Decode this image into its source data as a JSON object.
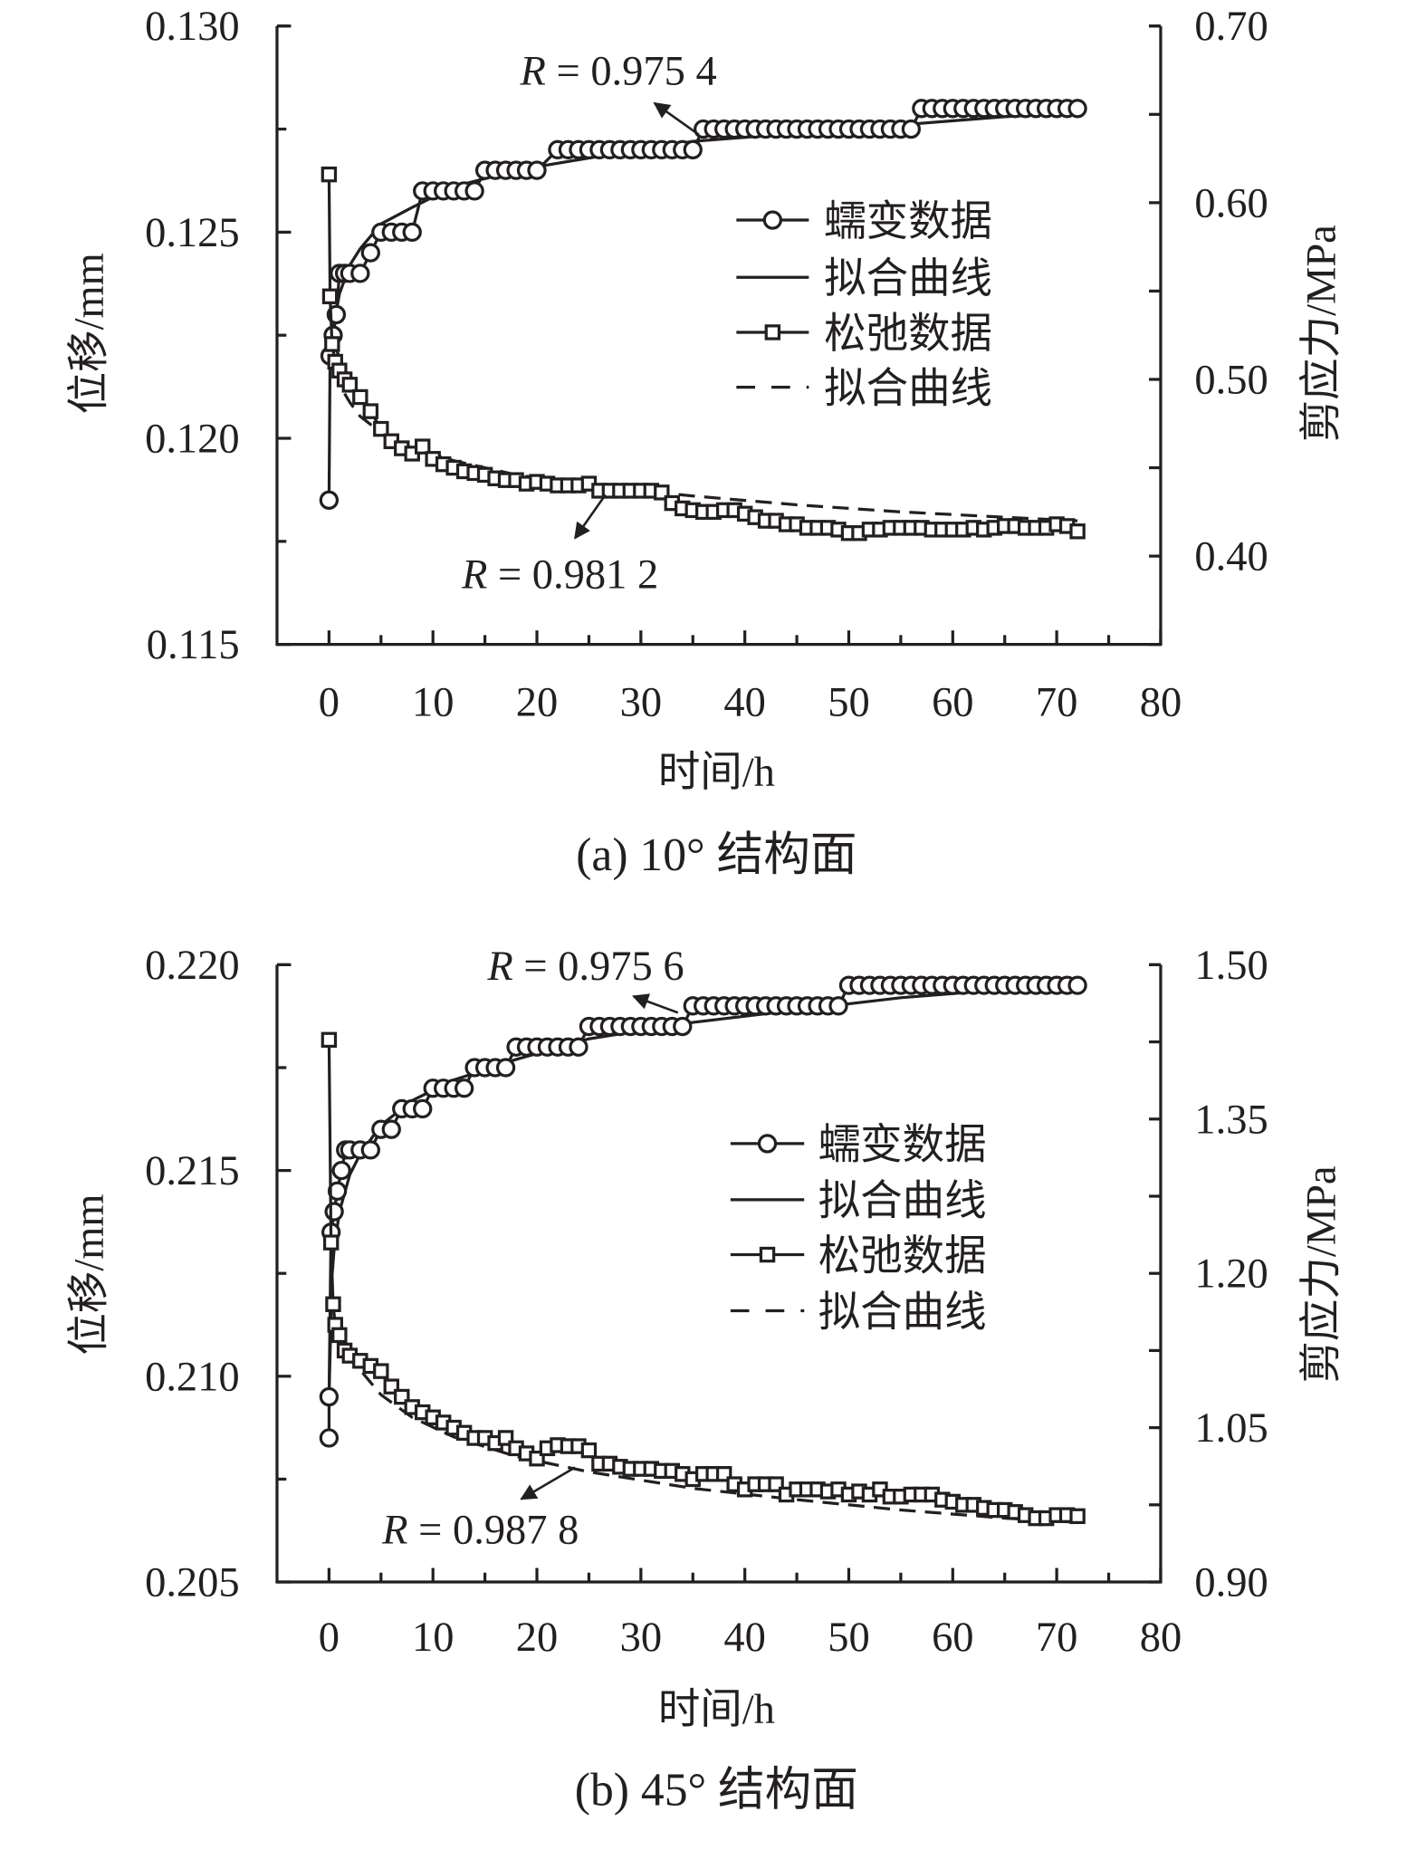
{
  "chart_data": [
    {
      "type": "line",
      "caption": "(a) 10° 结构面",
      "xlabel": "时间/h",
      "ylabel_left": "位移/mm",
      "ylabel_right": "剪应力/MPa",
      "xlim": [
        -5,
        80
      ],
      "ylim_left": [
        0.115,
        0.13
      ],
      "ylim_right": [
        0.35,
        0.7
      ],
      "x_ticks": [
        "0",
        "10",
        "20",
        "30",
        "40",
        "50",
        "60",
        "70",
        "80"
      ],
      "left_ticks": [
        "0.115",
        "0.120",
        "0.125",
        "0.130"
      ],
      "right_ticks": [
        "0.40",
        "0.50",
        "0.60",
        "0.70"
      ],
      "legend": [
        "蠕变数据",
        "拟合曲线",
        "松弛数据",
        "拟合曲线"
      ],
      "legend_position": "center-right",
      "annotations": [
        "R = 0.975 4",
        "R = 0.981 2"
      ],
      "creep": {
        "name": "蠕变数据",
        "points": [
          [
            0,
            0.1185
          ],
          [
            0.1,
            0.122
          ],
          [
            0.4,
            0.1225
          ],
          [
            0.7,
            0.123
          ],
          [
            1,
            0.124
          ],
          [
            1.5,
            0.124
          ],
          [
            2,
            0.124
          ],
          [
            3,
            0.124
          ],
          [
            4,
            0.1245
          ]
        ],
        "steps": [
          [
            5,
            8,
            0.125
          ],
          [
            9,
            14,
            0.126
          ],
          [
            15,
            20,
            0.1265
          ],
          [
            22,
            35,
            0.127
          ],
          [
            36,
            56,
            0.1275
          ],
          [
            57,
            72,
            0.128
          ]
        ]
      },
      "creep_fit": {
        "t": [
          0.3,
          0.5,
          1,
          2,
          3,
          5,
          8,
          12,
          18,
          25,
          35,
          45,
          55,
          65,
          72
        ],
        "v": [
          0.1223,
          0.1228,
          0.1235,
          0.1242,
          0.1246,
          0.1252,
          0.1256,
          0.1261,
          0.1265,
          0.1268,
          0.1272,
          0.1274,
          0.1276,
          0.1278,
          0.1279
        ]
      },
      "relax": {
        "name": "松弛数据",
        "t": [
          0,
          0.1,
          0.3,
          0.6,
          1,
          1.5,
          2,
          3,
          4,
          5,
          6,
          7,
          8,
          9,
          10,
          11,
          12,
          13,
          14,
          15,
          16,
          17,
          18,
          19,
          20,
          21,
          22,
          23,
          24,
          25,
          26,
          27,
          28,
          29,
          30,
          31,
          32,
          33,
          34,
          35,
          36,
          37,
          38,
          39,
          40,
          41,
          42,
          43,
          44,
          45,
          46,
          47,
          48,
          49,
          50,
          51,
          52,
          53,
          54,
          55,
          56,
          57,
          58,
          59,
          60,
          61,
          62,
          63,
          64,
          65,
          66,
          67,
          68,
          69,
          70,
          71,
          72
        ],
        "v": [
          0.616,
          0.547,
          0.52,
          0.51,
          0.505,
          0.5,
          0.497,
          0.49,
          0.482,
          0.472,
          0.465,
          0.461,
          0.458,
          0.462,
          0.455,
          0.452,
          0.45,
          0.448,
          0.447,
          0.446,
          0.444,
          0.443,
          0.443,
          0.441,
          0.442,
          0.441,
          0.44,
          0.44,
          0.44,
          0.441,
          0.437,
          0.437,
          0.437,
          0.437,
          0.437,
          0.437,
          0.436,
          0.43,
          0.427,
          0.426,
          0.425,
          0.425,
          0.426,
          0.426,
          0.424,
          0.422,
          0.42,
          0.42,
          0.418,
          0.418,
          0.416,
          0.416,
          0.416,
          0.415,
          0.413,
          0.413,
          0.415,
          0.415,
          0.416,
          0.416,
          0.416,
          0.416,
          0.415,
          0.415,
          0.415,
          0.415,
          0.416,
          0.415,
          0.416,
          0.417,
          0.417,
          0.416,
          0.416,
          0.416,
          0.418,
          0.417,
          0.414
        ]
      },
      "relax_fit": {
        "t": [
          1.5,
          2,
          3,
          5,
          8,
          12,
          18,
          25,
          35,
          45,
          55,
          65,
          72
        ],
        "v": [
          0.492,
          0.487,
          0.479,
          0.47,
          0.461,
          0.454,
          0.446,
          0.44,
          0.434,
          0.429,
          0.425,
          0.422,
          0.42
        ]
      }
    },
    {
      "type": "line",
      "caption": "(b) 45° 结构面",
      "xlabel": "时间/h",
      "ylabel_left": "位移/mm",
      "ylabel_right": "剪应力/MPa",
      "xlim": [
        -5,
        80
      ],
      "ylim_left": [
        0.205,
        0.22
      ],
      "ylim_right": [
        0.9,
        1.5
      ],
      "x_ticks": [
        "0",
        "10",
        "20",
        "30",
        "40",
        "50",
        "60",
        "70",
        "80"
      ],
      "left_ticks": [
        "0.205",
        "0.210",
        "0.215",
        "0.220"
      ],
      "right_ticks": [
        "0.90",
        "1.05",
        "1.20",
        "1.35",
        "1.50"
      ],
      "legend": [
        "蠕变数据",
        "拟合曲线",
        "松弛数据",
        "拟合曲线"
      ],
      "legend_position": "center-right",
      "annotations": [
        "R = 0.975 6",
        "R = 0.987 8"
      ],
      "creep": {
        "name": "蠕变数据",
        "points": [
          [
            0,
            0.2085
          ],
          [
            0,
            0.2095
          ],
          [
            0.2,
            0.2135
          ],
          [
            0.5,
            0.214
          ],
          [
            0.8,
            0.2145
          ],
          [
            1.2,
            0.215
          ],
          [
            1.6,
            0.2155
          ],
          [
            2,
            0.2155
          ],
          [
            3,
            0.2155
          ],
          [
            4,
            0.2155
          ]
        ],
        "steps": [
          [
            5,
            6,
            0.216
          ],
          [
            7,
            9,
            0.2165
          ],
          [
            10,
            13,
            0.217
          ],
          [
            14,
            17,
            0.2175
          ],
          [
            18,
            24,
            0.218
          ],
          [
            25,
            34,
            0.2185
          ],
          [
            35,
            49,
            0.219
          ],
          [
            50,
            72,
            0.2195
          ]
        ]
      },
      "creep_fit": {
        "t": [
          0.3,
          0.5,
          1,
          2,
          3,
          5,
          8,
          12,
          18,
          25,
          35,
          45,
          55,
          65,
          72
        ],
        "v": [
          0.21245,
          0.2131,
          0.214,
          0.2149,
          0.2154,
          0.2161,
          0.2167,
          0.2172,
          0.2177,
          0.2182,
          0.2186,
          0.2189,
          0.2192,
          0.2194,
          0.2195
        ]
      },
      "relax": {
        "name": "松弛数据",
        "t": [
          0,
          0.2,
          0.4,
          0.6,
          1,
          1.5,
          2,
          3,
          4,
          5,
          6,
          7,
          8,
          9,
          10,
          11,
          12,
          13,
          14,
          15,
          16,
          17,
          18,
          19,
          20,
          21,
          22,
          23,
          24,
          25,
          26,
          27,
          28,
          29,
          30,
          31,
          32,
          33,
          34,
          35,
          36,
          37,
          38,
          39,
          40,
          41,
          42,
          43,
          44,
          45,
          46,
          47,
          48,
          49,
          50,
          51,
          52,
          53,
          54,
          55,
          56,
          57,
          58,
          59,
          60,
          61,
          62,
          63,
          64,
          65,
          66,
          67,
          68,
          69,
          70,
          71,
          72
        ],
        "v": [
          1.427,
          1.23,
          1.17,
          1.15,
          1.14,
          1.125,
          1.12,
          1.115,
          1.11,
          1.105,
          1.09,
          1.08,
          1.07,
          1.065,
          1.06,
          1.055,
          1.05,
          1.045,
          1.04,
          1.04,
          1.035,
          1.04,
          1.03,
          1.025,
          1.02,
          1.03,
          1.033,
          1.032,
          1.032,
          1.028,
          1.015,
          1.015,
          1.012,
          1.01,
          1.01,
          1.01,
          1.008,
          1.008,
          1.005,
          1.0,
          1.005,
          1.005,
          1.005,
          0.995,
          0.99,
          0.995,
          0.995,
          0.995,
          0.985,
          0.99,
          0.99,
          0.99,
          0.988,
          0.99,
          0.985,
          0.988,
          0.985,
          0.99,
          0.983,
          0.983,
          0.985,
          0.985,
          0.985,
          0.98,
          0.978,
          0.975,
          0.975,
          0.972,
          0.97,
          0.97,
          0.968,
          0.965,
          0.962,
          0.962,
          0.965,
          0.965,
          0.964
        ]
      },
      "relax_fit": {
        "t": [
          2,
          3,
          5,
          8,
          12,
          18,
          25,
          35,
          45,
          55,
          65,
          72
        ],
        "v": [
          1.125,
          1.106,
          1.082,
          1.06,
          1.041,
          1.022,
          1.007,
          0.991,
          0.98,
          0.97,
          0.962,
          0.958
        ]
      }
    }
  ]
}
